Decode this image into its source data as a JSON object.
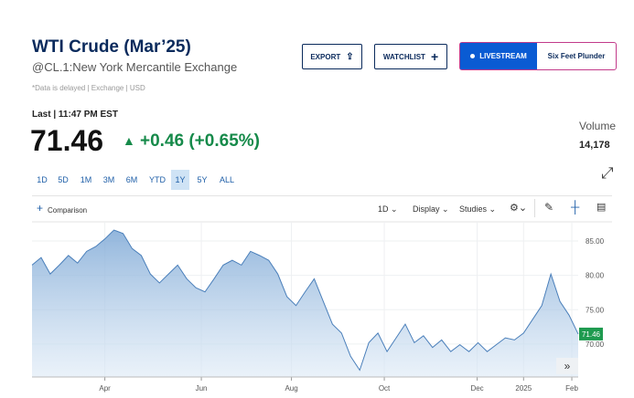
{
  "header": {
    "title": "WTI Crude (Mar’25)",
    "exchange": "@CL.1:New York Mercantile Exchange",
    "note": "*Data is delayed | Exchange | USD"
  },
  "buttons": {
    "export": "EXPORT",
    "watchlist": "WATCHLIST",
    "livestream": "LIVESTREAM",
    "show": "Six Feet Plunder"
  },
  "quote": {
    "last_label": "Last | 11:47 PM EST",
    "price": "71.46",
    "change": "+0.46 (+0.65%)",
    "volume_label": "Volume",
    "volume": "14,178"
  },
  "ranges": [
    "1D",
    "5D",
    "1M",
    "3M",
    "6M",
    "YTD",
    "1Y",
    "5Y",
    "ALL"
  ],
  "selected_range": 6,
  "toolbar": {
    "comparison": "Comparison",
    "interval": "1D",
    "display": "Display",
    "studies": "Studies"
  },
  "chart_data": {
    "type": "area",
    "color": "#4a7fba",
    "values": [
      81.5,
      82.6,
      80.2,
      81.5,
      82.9,
      81.8,
      83.5,
      84.2,
      85.3,
      86.6,
      86.1,
      83.9,
      82.9,
      80.2,
      78.9,
      80.2,
      81.5,
      79.5,
      78.2,
      77.6,
      79.5,
      81.5,
      82.2,
      81.5,
      83.5,
      82.9,
      82.2,
      80.2,
      76.9,
      75.6,
      77.6,
      79.5,
      76.2,
      72.9,
      71.6,
      68.2,
      66.2,
      70.2,
      71.6,
      68.9,
      70.9,
      72.9,
      70.2,
      71.2,
      69.5,
      70.6,
      68.9,
      69.9,
      68.9,
      70.2,
      68.9,
      69.9,
      70.9,
      70.6,
      71.6,
      73.6,
      75.6,
      80.2,
      76.2,
      74.2,
      71.46
    ],
    "xlim": [
      0,
      60
    ],
    "xticks": [
      {
        "value": 8,
        "label": "Apr"
      },
      {
        "value": 18.6,
        "label": "Jun"
      },
      {
        "value": 28.5,
        "label": "Aug"
      },
      {
        "value": 38.7,
        "label": "Oct"
      },
      {
        "value": 48.9,
        "label": "Dec"
      },
      {
        "value": 54,
        "label": "2025"
      },
      {
        "value": 59.3,
        "label": "Feb"
      }
    ],
    "ylim": [
      65.2,
      87.8
    ],
    "yticks": [
      {
        "value": 70,
        "label": "70.00"
      },
      {
        "value": 75,
        "label": "75.00"
      },
      {
        "value": 80,
        "label": "80.00"
      },
      {
        "value": 85,
        "label": "85.00"
      }
    ],
    "grid": true
  }
}
